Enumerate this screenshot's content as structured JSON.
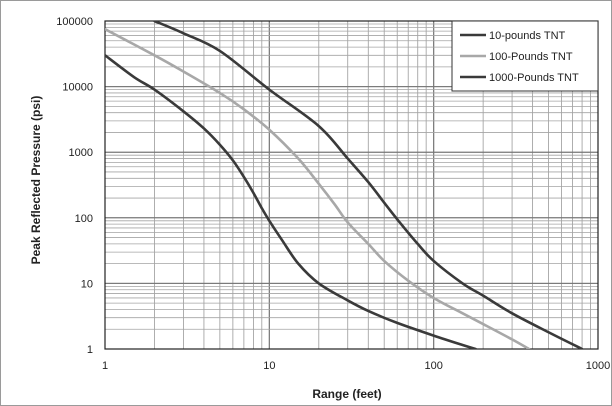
{
  "chart_data": {
    "type": "line",
    "title": "",
    "xlabel": "Range (feet)",
    "ylabel": "Peak Reflected Pressure (psi)",
    "x_scale": "log",
    "y_scale": "log",
    "xlim": [
      1,
      1000
    ],
    "ylim": [
      1,
      100000
    ],
    "x_ticks": [
      "1",
      "10",
      "100",
      "1000"
    ],
    "y_ticks": [
      "1",
      "10",
      "100",
      "1000",
      "10000",
      "100000"
    ],
    "grid": true,
    "legend_position": "top-right",
    "series": [
      {
        "name": "10-pounds TNT",
        "color": "#3a3a3a",
        "x": [
          1,
          1.5,
          2,
          3,
          4,
          5,
          6,
          7,
          8,
          9,
          10,
          12,
          15,
          20,
          30,
          40,
          60,
          100,
          150,
          180
        ],
        "y": [
          30000,
          14000,
          9000,
          4200,
          2300,
          1300,
          750,
          420,
          240,
          140,
          90,
          45,
          20,
          10,
          5.5,
          3.8,
          2.5,
          1.6,
          1.15,
          1
        ]
      },
      {
        "name": "100-Pounds TNT",
        "color": "#a8a8a8",
        "x": [
          1,
          2,
          3,
          5,
          7,
          10,
          15,
          20,
          25,
          30,
          40,
          50,
          70,
          100,
          150,
          200,
          300,
          380
        ],
        "y": [
          75000,
          30000,
          17000,
          8000,
          4500,
          2200,
          800,
          330,
          160,
          85,
          40,
          22,
          11,
          6,
          3.5,
          2.4,
          1.4,
          1
        ]
      },
      {
        "name": "1000-Pounds TNT",
        "color": "#3a3a3a",
        "x": [
          2,
          3,
          5,
          10,
          20,
          30,
          40,
          50,
          60,
          80,
          100,
          150,
          200,
          300,
          500,
          800
        ],
        "y": [
          100000,
          65000,
          35000,
          9000,
          2500,
          800,
          350,
          170,
          95,
          40,
          22,
          10,
          6.5,
          3.5,
          1.8,
          1
        ]
      }
    ]
  }
}
